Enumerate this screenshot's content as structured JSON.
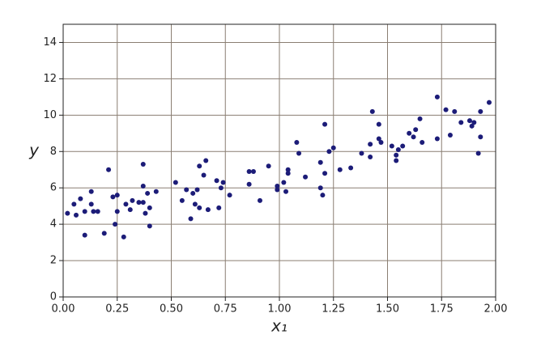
{
  "chart_data": {
    "type": "scatter",
    "x_label": "x₁",
    "y_label": "y",
    "xlim": [
      0,
      2
    ],
    "ylim": [
      0,
      15
    ],
    "xticks": [
      {
        "value": 0,
        "label": "0.00"
      },
      0.25,
      {
        "value": 0.5,
        "label": "0.50"
      },
      0.75,
      {
        "value": 1,
        "label": "1.00"
      },
      1.25,
      {
        "value": 1.5,
        "label": "1.50"
      },
      1.75,
      {
        "value": 2,
        "label": "2.00"
      }
    ],
    "yticks": [
      0,
      2,
      4,
      6,
      8,
      10,
      12,
      14
    ],
    "grid": true,
    "color": "#1c1c78",
    "x": [
      0.02,
      0.05,
      0.06,
      0.08,
      0.1,
      0.1,
      0.13,
      0.13,
      0.14,
      0.16,
      0.19,
      0.21,
      0.23,
      0.24,
      0.25,
      0.25,
      0.28,
      0.29,
      0.31,
      0.32,
      0.35,
      0.37,
      0.37,
      0.37,
      0.38,
      0.39,
      0.4,
      0.4,
      0.43,
      0.52,
      0.55,
      0.57,
      0.59,
      0.6,
      0.61,
      0.62,
      0.63,
      0.63,
      0.65,
      0.66,
      0.67,
      0.71,
      0.72,
      0.73,
      0.74,
      0.77,
      0.86,
      0.86,
      0.88,
      0.91,
      0.95,
      0.99,
      0.99,
      1.02,
      1.03,
      1.04,
      1.04,
      1.08,
      1.09,
      1.12,
      1.19,
      1.19,
      1.2,
      1.21,
      1.21,
      1.23,
      1.25,
      1.28,
      1.33,
      1.38,
      1.42,
      1.42,
      1.43,
      1.46,
      1.46,
      1.47,
      1.52,
      1.54,
      1.54,
      1.55,
      1.57,
      1.6,
      1.62,
      1.63,
      1.65,
      1.66,
      1.73,
      1.73,
      1.77,
      1.79,
      1.81,
      1.84,
      1.88,
      1.89,
      1.9,
      1.92,
      1.93,
      1.93,
      1.97
    ],
    "values": [
      4.6,
      5.1,
      4.5,
      5.4,
      3.4,
      4.7,
      5.8,
      5.1,
      4.7,
      4.7,
      3.5,
      7.0,
      5.5,
      4.0,
      5.6,
      4.7,
      3.3,
      5.1,
      4.8,
      5.3,
      5.2,
      7.3,
      6.1,
      5.2,
      4.6,
      5.7,
      3.9,
      4.9,
      5.8,
      6.3,
      5.3,
      5.9,
      4.3,
      5.7,
      5.1,
      5.9,
      7.2,
      4.9,
      6.7,
      7.5,
      4.8,
      6.4,
      4.9,
      6.0,
      6.3,
      5.6,
      6.9,
      6.2,
      6.9,
      5.3,
      7.2,
      5.9,
      6.1,
      6.3,
      5.8,
      7.0,
      6.8,
      8.5,
      7.9,
      6.6,
      7.4,
      6.0,
      5.6,
      6.8,
      9.5,
      8.0,
      8.2,
      7.0,
      7.1,
      7.9,
      8.4,
      7.7,
      10.2,
      9.5,
      8.7,
      8.5,
      8.3,
      7.8,
      7.5,
      8.1,
      8.3,
      9.0,
      8.8,
      9.2,
      9.8,
      8.5,
      11.0,
      8.7,
      10.3,
      8.9,
      10.2,
      9.6,
      9.7,
      9.4,
      9.6,
      7.9,
      10.2,
      8.8,
      10.7
    ]
  }
}
